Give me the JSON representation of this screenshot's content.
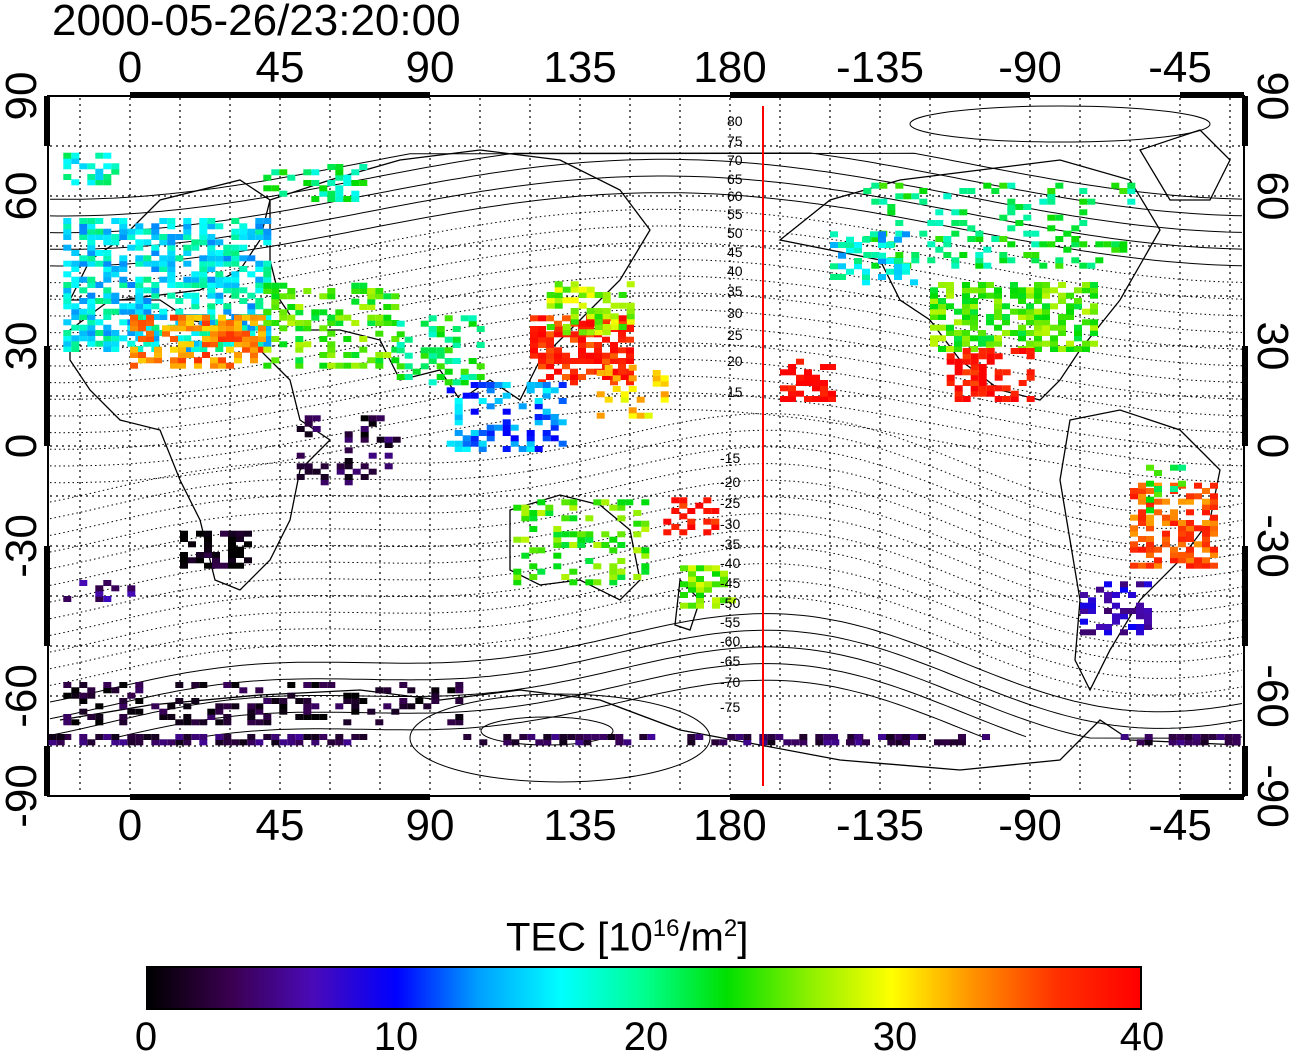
{
  "title": "2000-05-26/23:20:00",
  "map": {
    "lon_ticks": [
      "0",
      "45",
      "90",
      "135",
      "180",
      "-135",
      "-90",
      "-45"
    ],
    "lat_ticks": [
      "90",
      "60",
      "30",
      "0",
      "-30",
      "-60",
      "-90"
    ],
    "contour_labels": [
      "80",
      "75",
      "70",
      "65",
      "60",
      "55",
      "50",
      "45",
      "40",
      "35",
      "30",
      "25",
      "20",
      "15",
      "-15",
      "-20",
      "-25",
      "-30",
      "-35",
      "-40",
      "-45",
      "-50",
      "-55",
      "-60",
      "-65",
      "-70",
      "-75"
    ],
    "terminator_longitude": 190,
    "terminator_color": "#ff0000"
  },
  "colorbar": {
    "label_prefix": "TEC  [10",
    "label_sup1": "16",
    "label_mid": "/m",
    "label_sup2": "2",
    "label_suffix": "]",
    "ticks": [
      "0",
      "10",
      "20",
      "30",
      "40"
    ],
    "min": 0,
    "max": 40,
    "colors": [
      "#000000",
      "#3a0050",
      "#4a0ab8",
      "#0000ff",
      "#00a0ff",
      "#00ffff",
      "#00ff90",
      "#00e000",
      "#8cf000",
      "#ffff00",
      "#ff9000",
      "#ff3000",
      "#ff0000"
    ]
  }
}
